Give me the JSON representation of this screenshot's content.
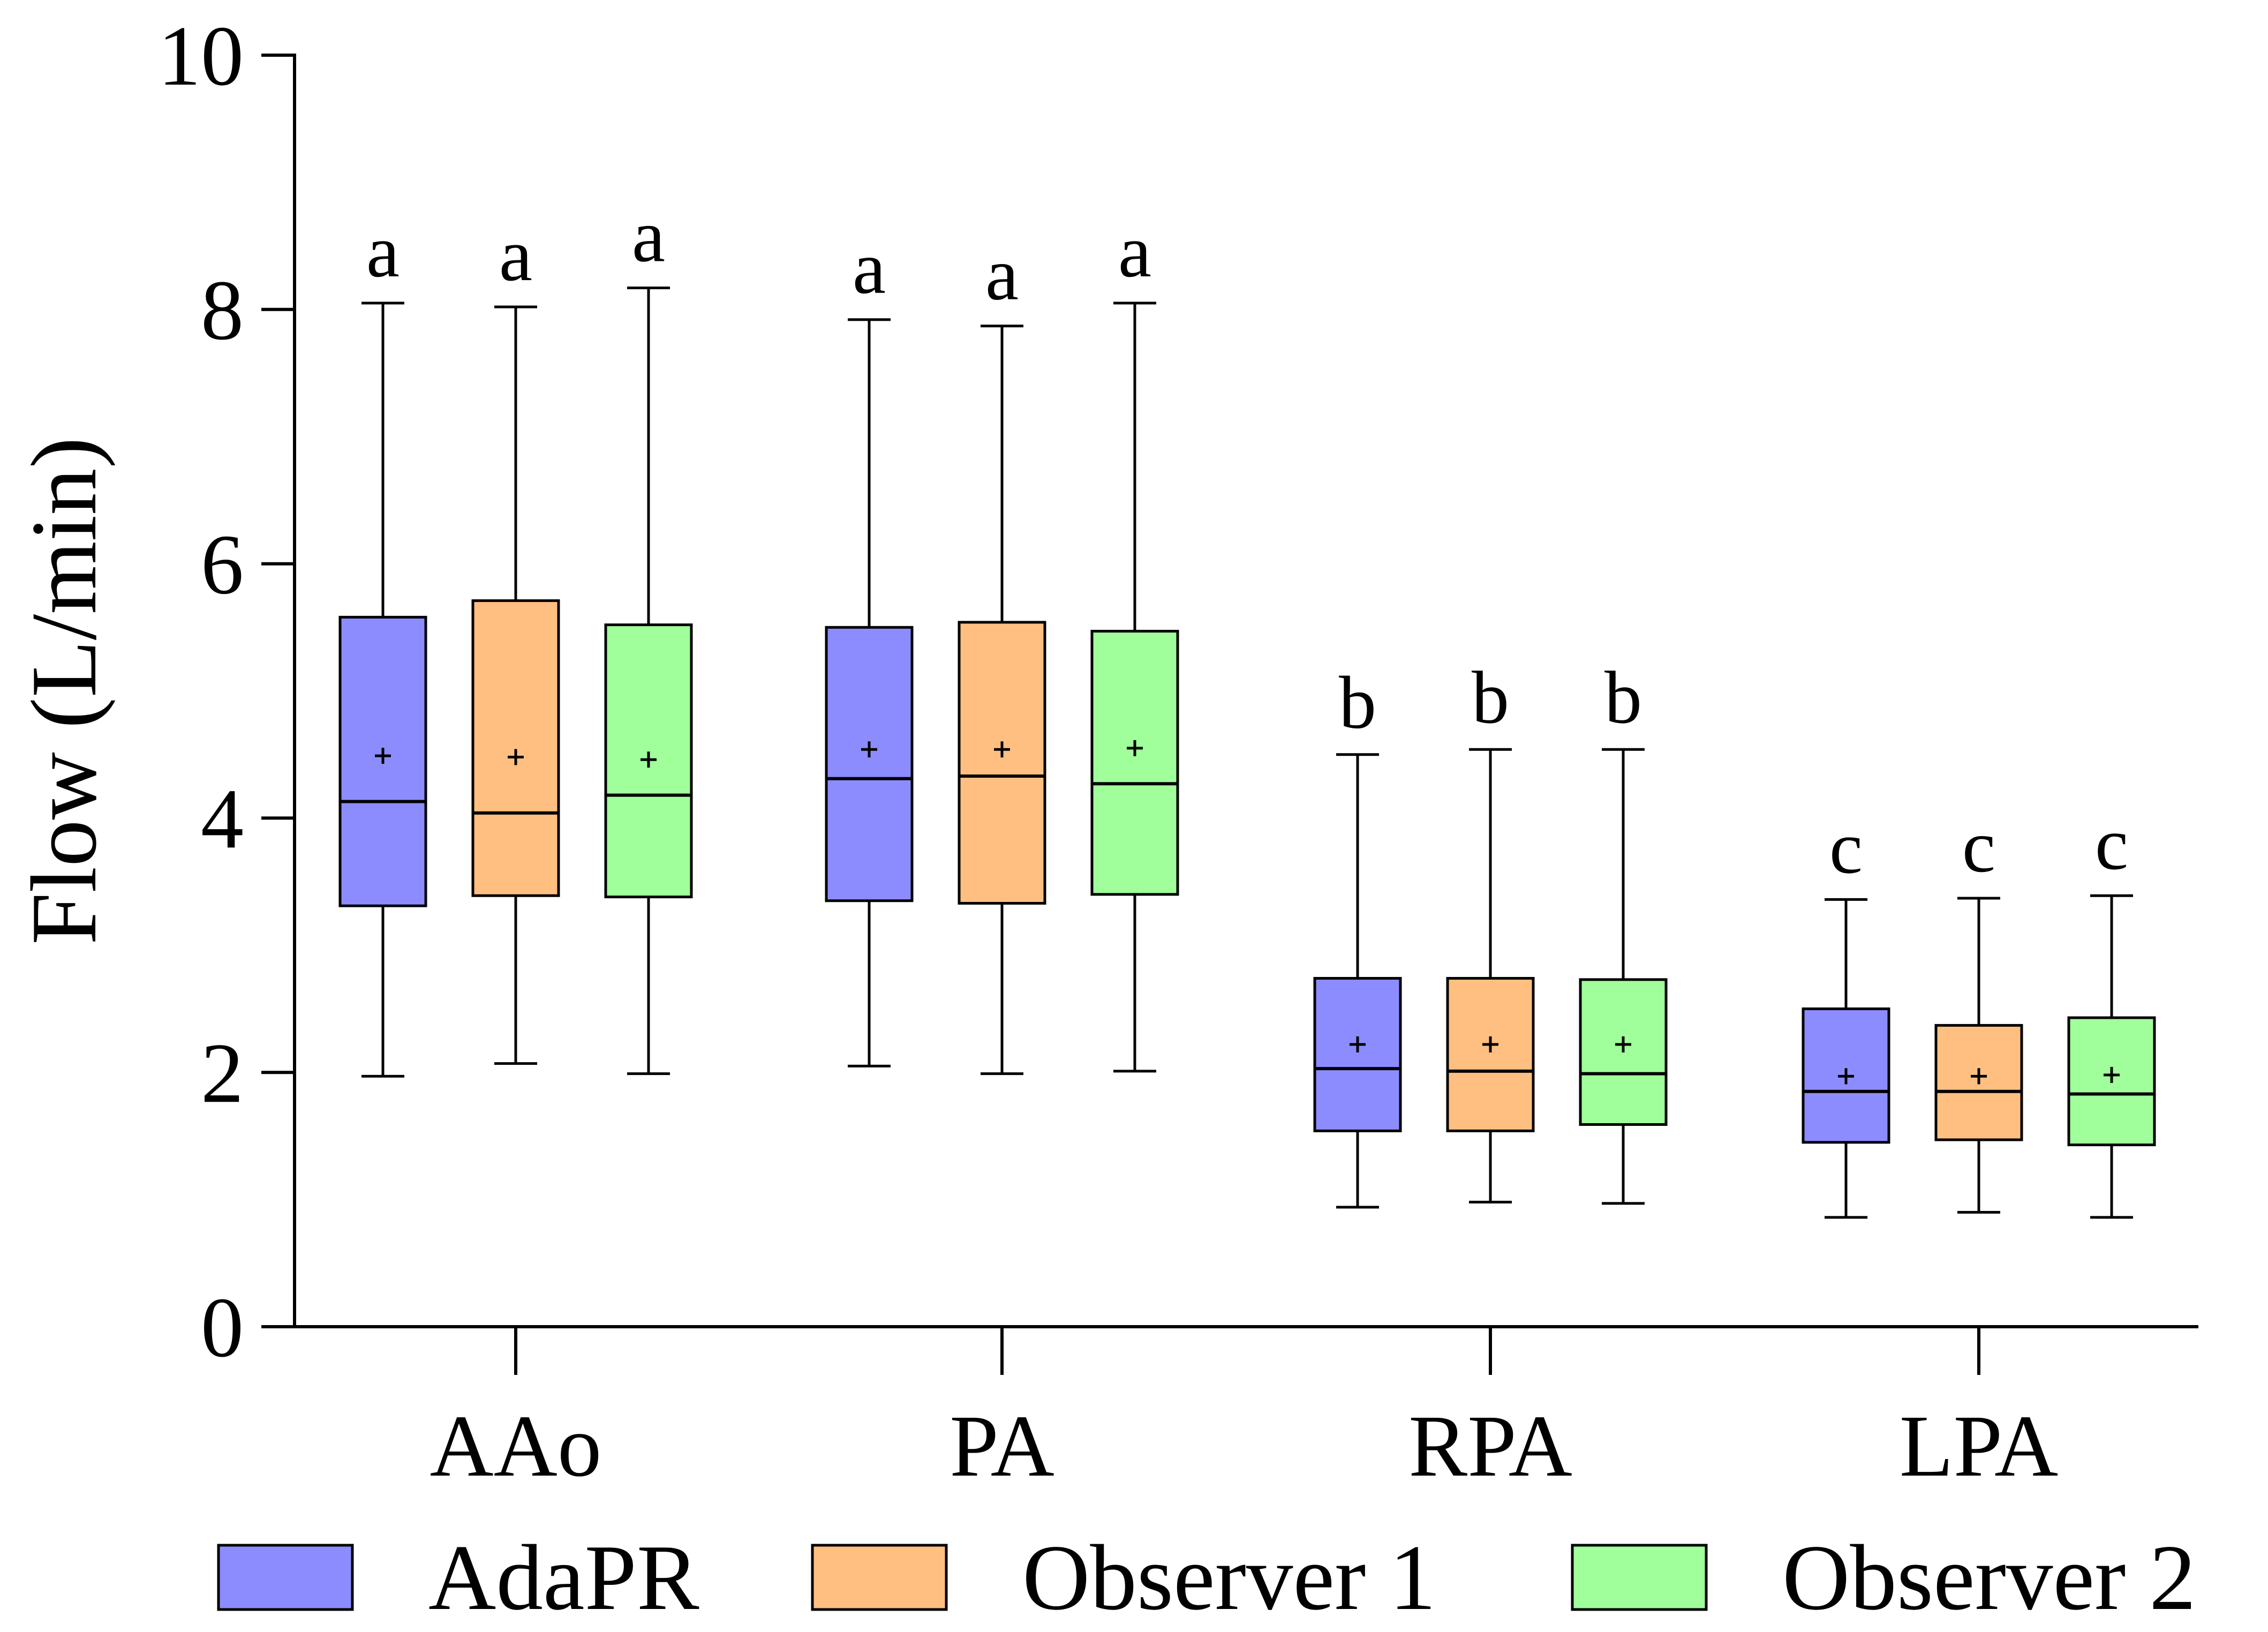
{
  "chart_data": {
    "type": "box",
    "title": "",
    "xlabel": "",
    "ylabel": "Flow (L/min)",
    "ylim": [
      0,
      10
    ],
    "yticks": [
      0,
      2,
      4,
      6,
      8,
      10
    ],
    "grid": false,
    "legend_position": "bottom",
    "categories": [
      "AAo",
      "PA",
      "RPA",
      "LPA"
    ],
    "series": [
      {
        "name": "AdaPR",
        "color": "#8c8cff",
        "boxes": [
          {
            "min": 1.97,
            "q1": 3.31,
            "median": 4.13,
            "q3": 5.58,
            "max": 8.05,
            "mean": 4.49,
            "sig": "a"
          },
          {
            "min": 2.05,
            "q1": 3.35,
            "median": 4.31,
            "q3": 5.5,
            "max": 7.92,
            "mean": 4.54,
            "sig": "a"
          },
          {
            "min": 0.94,
            "q1": 1.54,
            "median": 2.03,
            "q3": 2.74,
            "max": 4.5,
            "mean": 2.22,
            "sig": "b"
          },
          {
            "min": 0.86,
            "q1": 1.45,
            "median": 1.85,
            "q3": 2.5,
            "max": 3.36,
            "mean": 1.97,
            "sig": "c"
          }
        ]
      },
      {
        "name": "Observer 1",
        "color": "#ffbf80",
        "boxes": [
          {
            "min": 2.07,
            "q1": 3.39,
            "median": 4.04,
            "q3": 5.71,
            "max": 8.02,
            "mean": 4.48,
            "sig": "a"
          },
          {
            "min": 1.99,
            "q1": 3.33,
            "median": 4.33,
            "q3": 5.54,
            "max": 7.87,
            "mean": 4.54,
            "sig": "a"
          },
          {
            "min": 0.98,
            "q1": 1.54,
            "median": 2.01,
            "q3": 2.74,
            "max": 4.54,
            "mean": 2.22,
            "sig": "b"
          },
          {
            "min": 0.9,
            "q1": 1.47,
            "median": 1.85,
            "q3": 2.37,
            "max": 3.37,
            "mean": 1.97,
            "sig": "c"
          }
        ]
      },
      {
        "name": "Observer 2",
        "color": "#a0ff9a",
        "boxes": [
          {
            "min": 1.99,
            "q1": 3.38,
            "median": 4.18,
            "q3": 5.52,
            "max": 8.17,
            "mean": 4.46,
            "sig": "a"
          },
          {
            "min": 2.01,
            "q1": 3.4,
            "median": 4.27,
            "q3": 5.47,
            "max": 8.05,
            "mean": 4.55,
            "sig": "a"
          },
          {
            "min": 0.97,
            "q1": 1.59,
            "median": 1.99,
            "q3": 2.73,
            "max": 4.54,
            "mean": 2.22,
            "sig": "b"
          },
          {
            "min": 0.86,
            "q1": 1.43,
            "median": 1.83,
            "q3": 2.43,
            "max": 3.39,
            "mean": 1.98,
            "sig": "c"
          }
        ]
      }
    ]
  }
}
